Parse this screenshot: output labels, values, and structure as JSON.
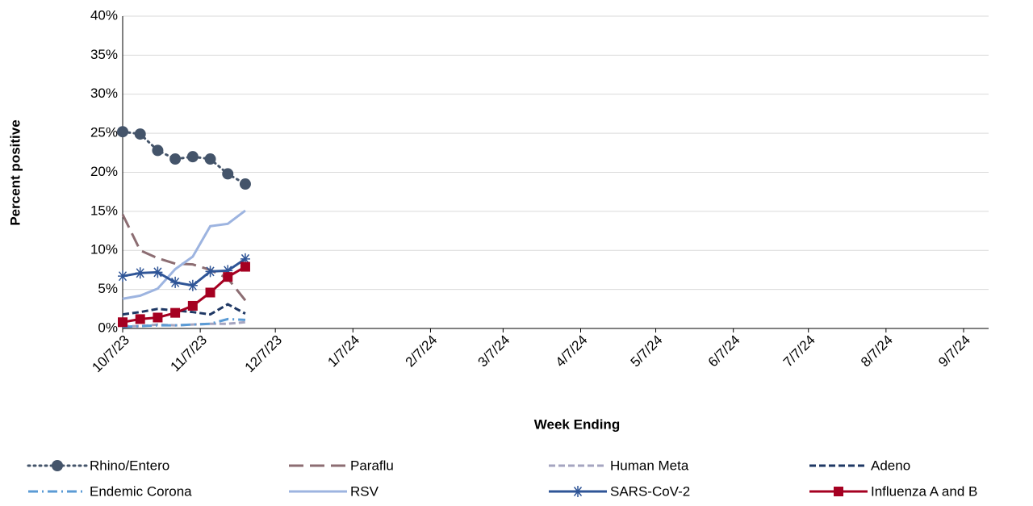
{
  "chart_data": {
    "type": "line",
    "y_label": "Percent positive",
    "x_label": "Week Ending",
    "x": [
      "10/7/23",
      "10/14/23",
      "10/21/23",
      "10/28/23",
      "11/4/23",
      "11/11/23",
      "11/18/23",
      "11/25/23"
    ],
    "xlim": [
      "10/7/23",
      "9/17/24"
    ],
    "xticks": [
      "10/7/23",
      "11/7/23",
      "12/7/23",
      "1/7/24",
      "2/7/24",
      "3/7/24",
      "4/7/24",
      "5/7/24",
      "6/7/24",
      "7/7/24",
      "8/7/24",
      "9/7/24"
    ],
    "ylim": [
      0,
      40
    ],
    "yticks": [
      {
        "value": 0,
        "label": "0%"
      },
      {
        "value": 5,
        "label": "5%"
      },
      {
        "value": 10,
        "label": "10%"
      },
      {
        "value": 15,
        "label": "15%"
      },
      {
        "value": 20,
        "label": "20%"
      },
      {
        "value": 25,
        "label": "25%"
      },
      {
        "value": 30,
        "label": "30%"
      },
      {
        "value": 35,
        "label": "35%"
      },
      {
        "value": 40,
        "label": "40%"
      }
    ],
    "grid": true,
    "legend": "bottom",
    "series": [
      {
        "name": "Rhino/Entero",
        "color": "#44546a",
        "dash": "round-dot",
        "marker": "circle",
        "values": [
          25.2,
          24.9,
          22.8,
          21.7,
          22.0,
          21.7,
          19.8,
          18.5
        ]
      },
      {
        "name": "Paraflu",
        "color": "#8c6d72",
        "dash": "long-dash",
        "marker": "none",
        "values": [
          14.6,
          10.0,
          9.0,
          8.3,
          8.2,
          7.5,
          6.4,
          3.6
        ]
      },
      {
        "name": "Human Meta",
        "color": "#a5a5c0",
        "dash": "dash",
        "marker": "none",
        "values": [
          0.3,
          0.3,
          0.5,
          0.4,
          0.5,
          0.6,
          0.6,
          0.8
        ]
      },
      {
        "name": "Adeno",
        "color": "#1f3864",
        "dash": "dash",
        "marker": "none",
        "values": [
          1.8,
          2.1,
          2.5,
          2.3,
          2.1,
          1.8,
          3.1,
          1.9
        ]
      },
      {
        "name": "Endemic Corona",
        "color": "#5b9bd5",
        "dash": "dash-dot",
        "marker": "none",
        "values": [
          0.2,
          0.3,
          0.4,
          0.4,
          0.5,
          0.6,
          1.2,
          1.1
        ]
      },
      {
        "name": "RSV",
        "color": "#9db4e0",
        "dash": "solid",
        "marker": "none",
        "values": [
          3.8,
          4.2,
          5.1,
          7.6,
          9.2,
          13.1,
          13.4,
          15.1
        ]
      },
      {
        "name": "SARS-CoV-2",
        "color": "#2f5597",
        "dash": "solid",
        "marker": "star",
        "values": [
          6.7,
          7.1,
          7.2,
          5.9,
          5.5,
          7.3,
          7.4,
          8.9
        ]
      },
      {
        "name": "Influenza A and B",
        "color": "#a50021",
        "dash": "solid",
        "marker": "square",
        "values": [
          0.8,
          1.2,
          1.4,
          2.0,
          2.9,
          4.6,
          6.6,
          7.9
        ]
      }
    ]
  }
}
